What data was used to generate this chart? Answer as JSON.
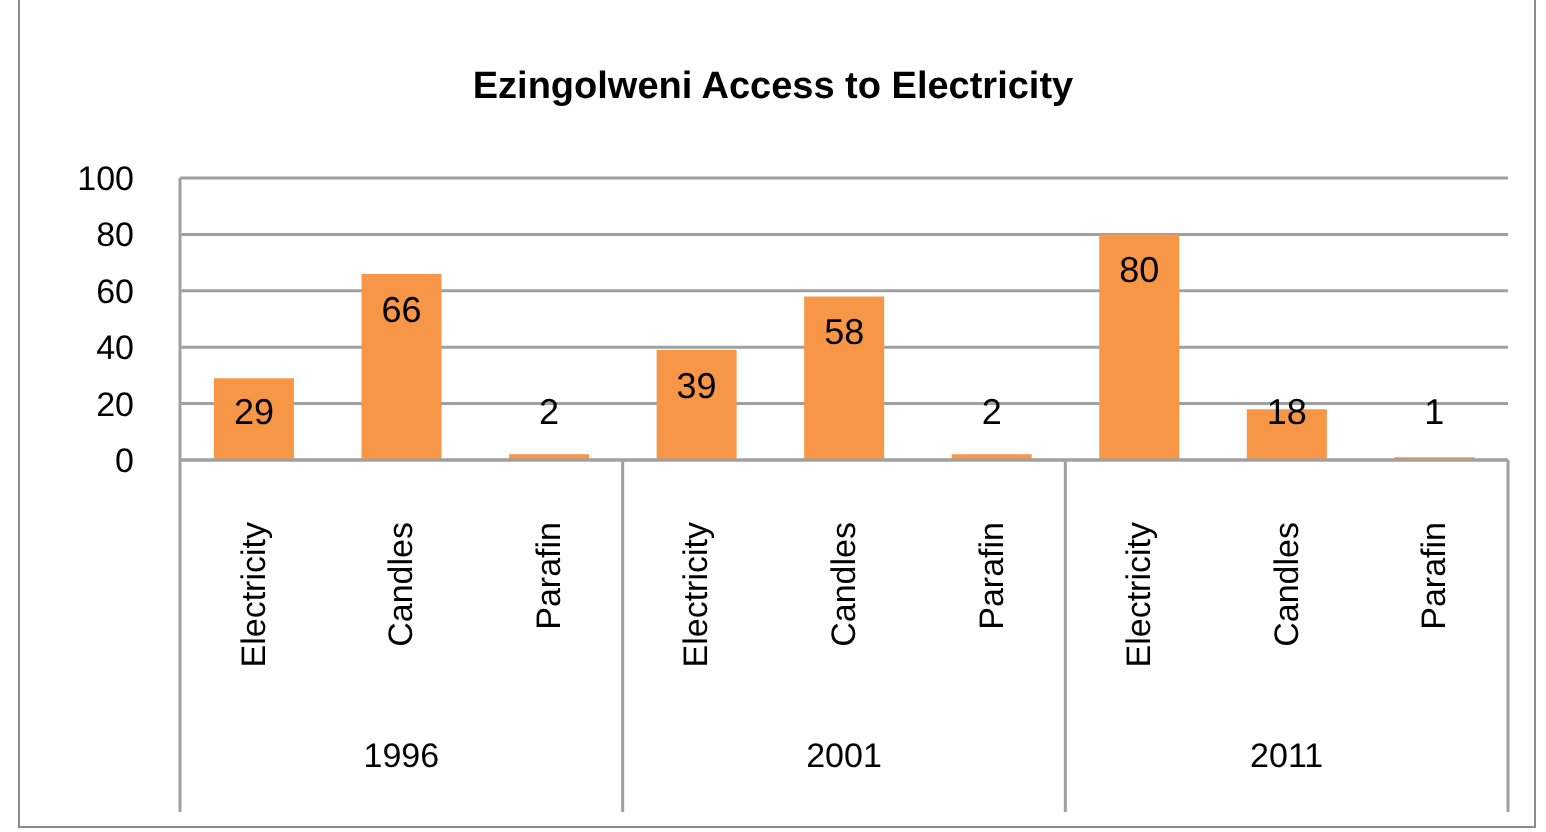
{
  "chart_data": {
    "type": "bar",
    "title": "Ezingolweni Access to Electricity",
    "categories": [
      "Electricity",
      "Candles",
      "Parafin",
      "Electricity",
      "Candles",
      "Parafin",
      "Electricity",
      "Candles",
      "Parafin"
    ],
    "values": [
      29,
      66,
      2,
      39,
      58,
      2,
      80,
      18,
      1
    ],
    "color": "#f79646",
    "ylim": [
      0,
      100
    ],
    "yticks": [
      0,
      20,
      40,
      60,
      80,
      100
    ],
    "grid": "y",
    "data_labels": true,
    "annotations": [
      "1996",
      "2001",
      "2011"
    ]
  }
}
